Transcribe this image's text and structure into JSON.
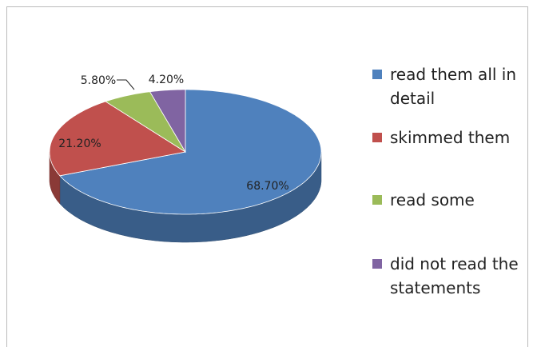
{
  "chart_data": {
    "type": "pie3d",
    "categories": [
      "read them all in detail",
      "skimmed them",
      "read some",
      "did not read the statements"
    ],
    "values": [
      68.7,
      21.2,
      5.8,
      4.2
    ],
    "value_labels": [
      "68.70%",
      "21.20%",
      "5.80%",
      "4.20%"
    ],
    "colors": [
      "#4f81bd",
      "#c0504d",
      "#9bbb59",
      "#8064a2"
    ],
    "legend": "right"
  }
}
